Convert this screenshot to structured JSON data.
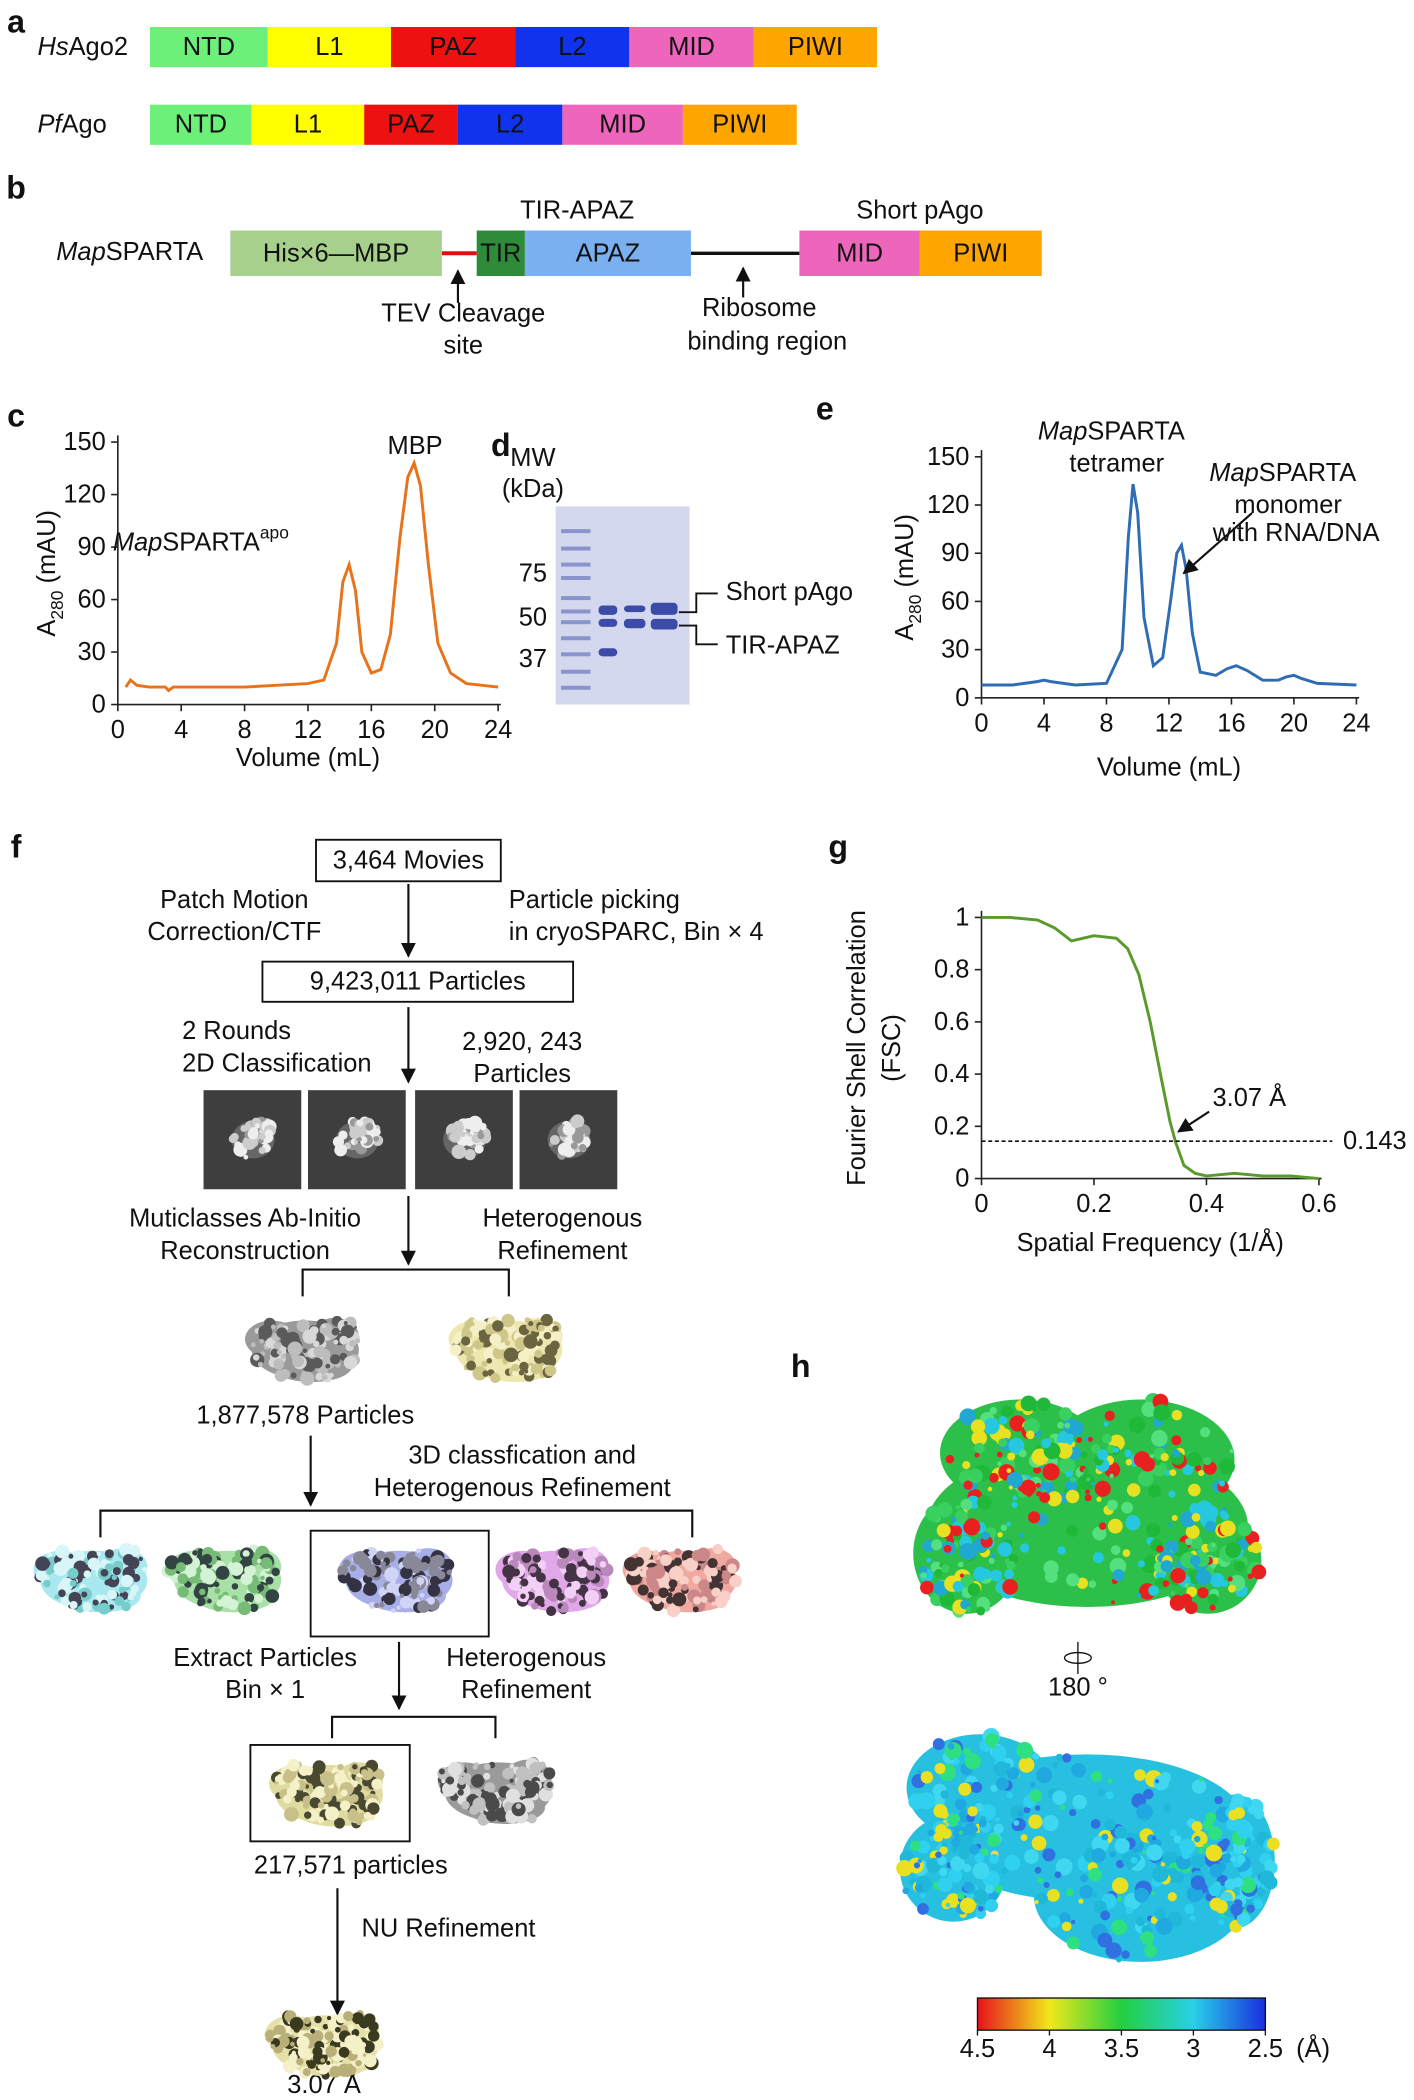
{
  "panel_a": {
    "letter": "a",
    "rows": [
      {
        "label_italic": "Hs",
        "label": "Ago2",
        "domains": [
          "NTD",
          "L1",
          "PAZ",
          "L2",
          "MID",
          "PIWI"
        ]
      },
      {
        "label_italic": "Pf",
        "label": "Ago",
        "domains": [
          "NTD",
          "L1",
          "PAZ",
          "L2",
          "MID",
          "PIWI"
        ]
      }
    ]
  },
  "panel_b": {
    "letter": "b",
    "label_italic": "Map",
    "label": "SPARTA",
    "domains": [
      "His×6—MBP",
      "TIR",
      "APAZ",
      "MID",
      "PIWI"
    ],
    "group_labels": [
      "TIR-APAZ",
      "Short pAgo"
    ],
    "annotations": [
      [
        "TEV Cleavage",
        "site"
      ],
      [
        "Ribosome",
        "binding region"
      ]
    ]
  },
  "chart_data": [
    {
      "type": "line",
      "panel": "c",
      "x": [
        0.5,
        0.8,
        1.2,
        2,
        3,
        3.2,
        3.5,
        5,
        8,
        10,
        12,
        13,
        13.8,
        14.2,
        14.6,
        15,
        15.4,
        16,
        16.6,
        17.2,
        17.8,
        18.3,
        18.7,
        19.1,
        19.6,
        20.2,
        21,
        22,
        24
      ],
      "series": [
        {
          "color": "#e8731a",
          "values": [
            10,
            14,
            11,
            10,
            10,
            8,
            10,
            10,
            10,
            11,
            12,
            14,
            35,
            70,
            80,
            65,
            30,
            18,
            20,
            40,
            95,
            130,
            138,
            125,
            80,
            35,
            18,
            12,
            10
          ]
        }
      ],
      "xlim": [
        0,
        24
      ],
      "xticks": [
        0,
        4,
        8,
        12,
        16,
        20,
        24
      ],
      "ylim": [
        0,
        150
      ],
      "yticks": [
        0,
        30,
        60,
        90,
        120,
        150
      ],
      "y_label": {
        "main": "A",
        "sub": "280",
        "rest": " (mAU)"
      },
      "x_label": "Volume (mL)",
      "annotations": [
        {
          "text": "MBP"
        },
        {
          "italic": "Map",
          "text": "SPARTA",
          "sup": "apo"
        }
      ]
    },
    {
      "type": "line",
      "panel": "e",
      "x": [
        0,
        2,
        3.5,
        4,
        4.5,
        6,
        8,
        9,
        9.4,
        9.7,
        10,
        10.4,
        11,
        11.6,
        12.1,
        12.5,
        12.8,
        13.1,
        13.5,
        14,
        15,
        15.7,
        16.3,
        17,
        18,
        19,
        19.5,
        20,
        20.5,
        21.5,
        24
      ],
      "series": [
        {
          "color": "#2e6db4",
          "values": [
            8,
            8,
            10,
            11,
            10,
            8,
            9,
            30,
            100,
            133,
            115,
            50,
            20,
            25,
            60,
            90,
            95,
            80,
            40,
            16,
            14,
            18,
            20,
            17,
            11,
            11,
            13,
            14,
            12,
            9,
            8
          ]
        }
      ],
      "xlim": [
        0,
        24
      ],
      "xticks": [
        0,
        4,
        8,
        12,
        16,
        20,
        24
      ],
      "ylim": [
        0,
        150
      ],
      "yticks": [
        0,
        30,
        60,
        90,
        120,
        150
      ],
      "y_label": {
        "main": "A",
        "sub": "280",
        "rest": " (mAU)"
      },
      "x_label": "Volume (mL)",
      "annotations": [
        {
          "italic": "Map",
          "text": "SPARTA",
          "lines": [
            "tetramer"
          ]
        },
        {
          "italic": "Map",
          "text": "SPARTA",
          "lines": [
            "monomer",
            "with RNA/DNA"
          ]
        }
      ]
    },
    {
      "type": "line",
      "panel": "g",
      "x": [
        0,
        0.05,
        0.1,
        0.13,
        0.16,
        0.18,
        0.2,
        0.24,
        0.26,
        0.28,
        0.3,
        0.32,
        0.335,
        0.345,
        0.36,
        0.38,
        0.4,
        0.45,
        0.5,
        0.55,
        0.6
      ],
      "series": [
        {
          "color": "#5a9a2a",
          "values": [
            1,
            1,
            0.99,
            0.96,
            0.91,
            0.92,
            0.93,
            0.92,
            0.88,
            0.78,
            0.6,
            0.38,
            0.22,
            0.14,
            0.05,
            0.02,
            0.01,
            0.02,
            0.01,
            0.01,
            0
          ]
        }
      ],
      "xlim": [
        0,
        0.6
      ],
      "xticks": [
        0,
        0.2,
        0.4,
        0.6
      ],
      "ylim": [
        0,
        1
      ],
      "yticks": [
        0,
        0.2,
        0.4,
        0.6,
        0.8,
        1
      ],
      "y_label": [
        "Fourier Shell Correlation",
        "(FSC)"
      ],
      "x_label": "Spatial Frequency (1/Å)",
      "threshold": 0.143,
      "annotations": [
        {
          "text": "3.07 Å"
        }
      ]
    }
  ],
  "panel_d": {
    "letter": "d",
    "mw_label": [
      "MW",
      "(kDa)"
    ],
    "markers": [
      75,
      50,
      37
    ],
    "bands": [
      "Short pAgo",
      "TIR-APAZ"
    ]
  },
  "panel_f": {
    "letter": "f",
    "boxes": [
      "3,464 Movies",
      "9,423,011 Particles"
    ],
    "notes": [
      [
        "Patch Motion",
        "Correction/CTF"
      ],
      [
        "Particle picking",
        "in cryoSPARC, Bin × 4"
      ],
      [
        "2 Rounds",
        "2D Classification"
      ],
      [
        "2,920, 243",
        "Particles"
      ],
      [
        "Muticlasses Ab-Initio",
        "Reconstruction"
      ],
      [
        "Heterogenous",
        "Refinement"
      ],
      [
        "1,877,578 Particles"
      ],
      [
        "3D classfication and",
        "Heterogenous Refinement"
      ],
      [
        "Extract Particles",
        "Bin × 1"
      ],
      [
        "Heterogenous",
        "Refinement"
      ],
      [
        "217,571 particles"
      ],
      [
        "NU Refinement"
      ],
      [
        "3.07 Å"
      ]
    ]
  },
  "panel_h": {
    "letter": "h",
    "rotation": "180 °",
    "colorbar": {
      "lim": [
        4.5,
        2.5
      ],
      "ticks": [
        4.5,
        4,
        3.5,
        3,
        2.5
      ],
      "unit": "(Å)"
    }
  }
}
